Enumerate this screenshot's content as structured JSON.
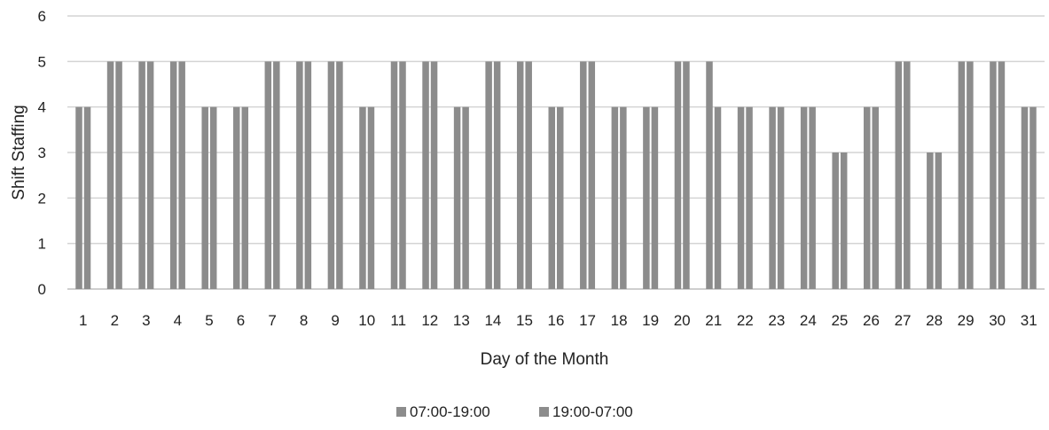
{
  "chart_data": {
    "type": "bar",
    "xlabel": "Day of the Month",
    "ylabel": "Shift Staffing",
    "ylim": [
      0,
      6
    ],
    "yticks": [
      0,
      1,
      2,
      3,
      4,
      5,
      6
    ],
    "grid": "horizontal",
    "legend_position": "bottom",
    "categories": [
      "1",
      "2",
      "3",
      "4",
      "5",
      "6",
      "7",
      "8",
      "9",
      "10",
      "11",
      "12",
      "13",
      "14",
      "15",
      "16",
      "17",
      "18",
      "19",
      "20",
      "21",
      "22",
      "23",
      "24",
      "25",
      "26",
      "27",
      "28",
      "29",
      "30",
      "31"
    ],
    "series": [
      {
        "name": "07:00-19:00",
        "color": "#8c8c8c",
        "values": [
          4,
          5,
          5,
          5,
          4,
          4,
          5,
          5,
          5,
          4,
          5,
          5,
          4,
          5,
          5,
          4,
          5,
          4,
          4,
          5,
          5,
          4,
          4,
          4,
          3,
          4,
          5,
          3,
          5,
          5,
          4
        ]
      },
      {
        "name": "19:00-07:00",
        "color": "#8c8c8c",
        "values": [
          4,
          5,
          5,
          5,
          4,
          4,
          5,
          5,
          5,
          4,
          5,
          5,
          4,
          5,
          5,
          4,
          5,
          4,
          4,
          5,
          4,
          4,
          4,
          4,
          3,
          4,
          5,
          3,
          5,
          5,
          4
        ]
      }
    ]
  }
}
